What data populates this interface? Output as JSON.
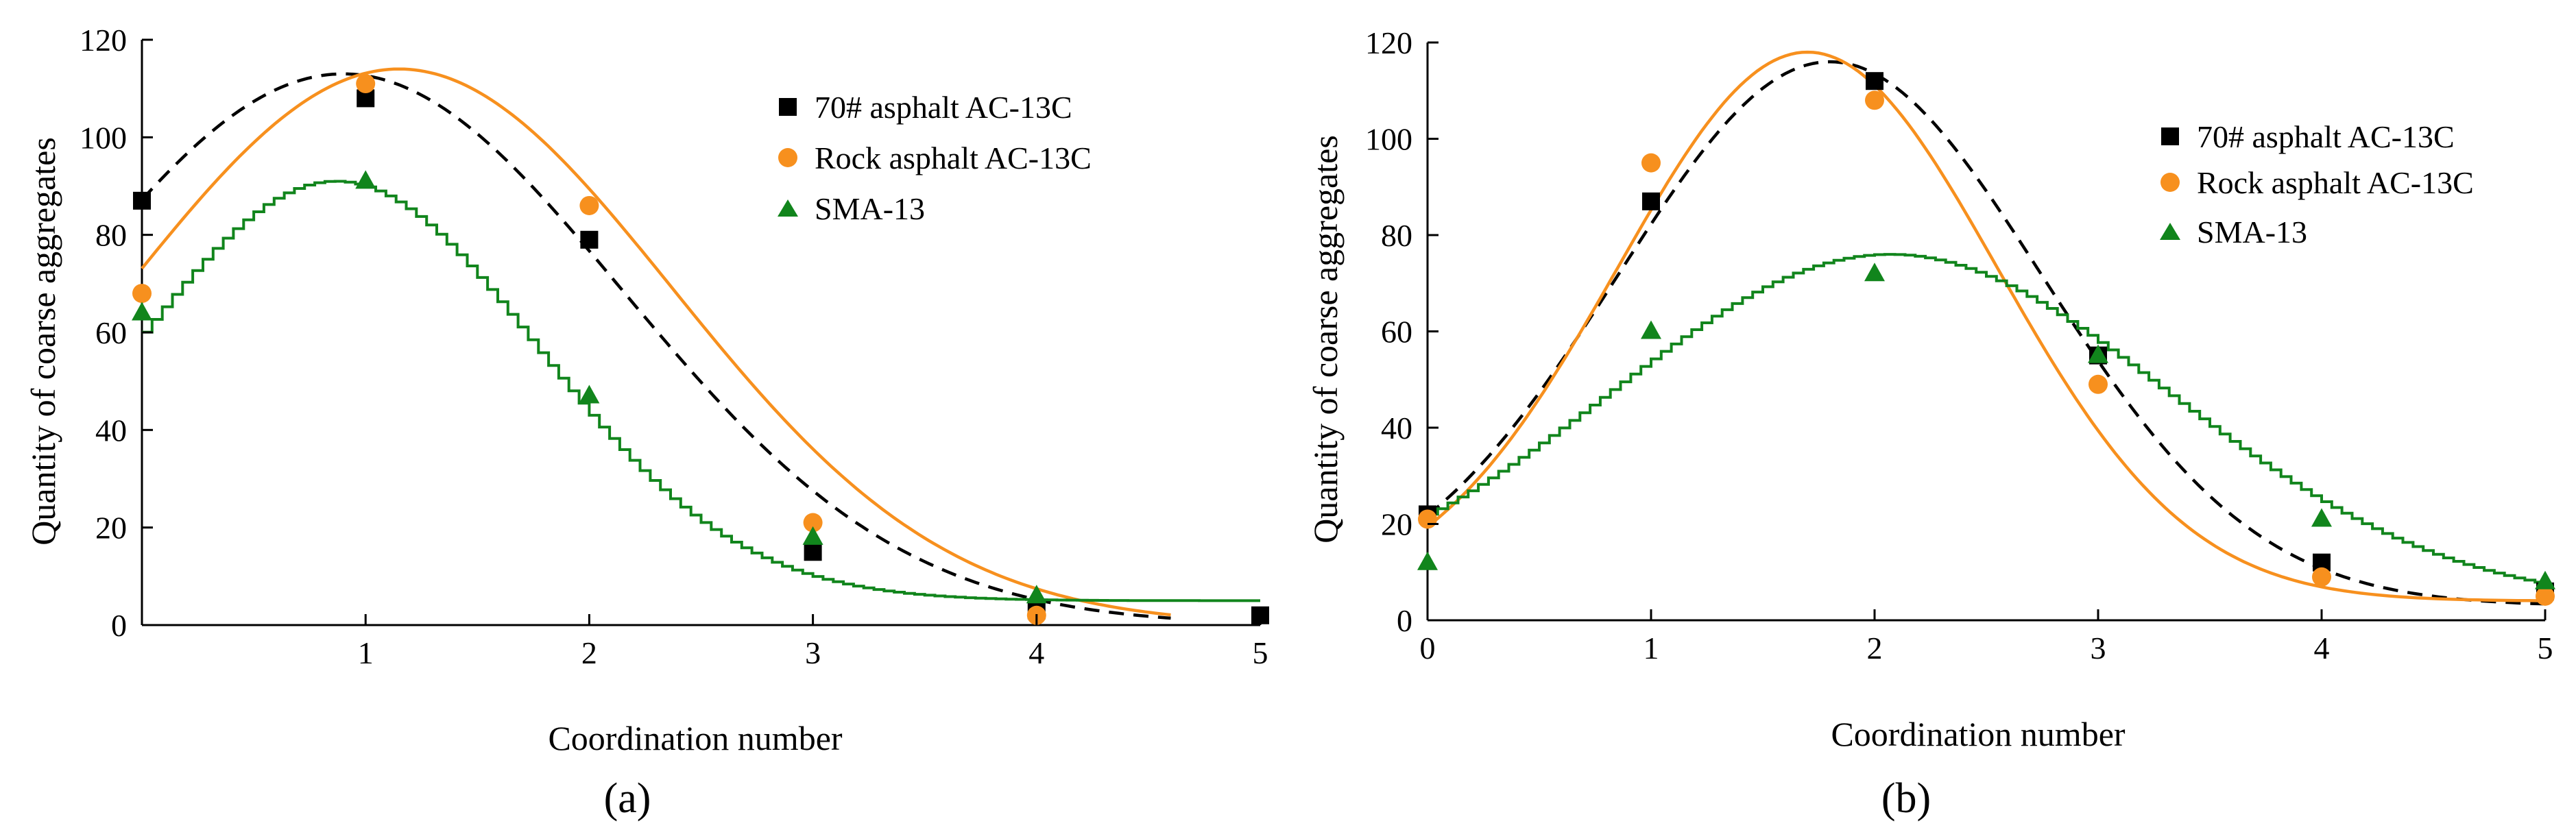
{
  "figure": {
    "charts": [
      {
        "panel_label": "(a)",
        "legend_entries": [
          "70# asphalt AC-13C",
          "Rock asphalt AC-13C",
          "SMA-13"
        ]
      },
      {
        "panel_label": "(b)",
        "legend_entries": [
          "70# asphalt AC-13C",
          "Rock asphalt AC-13C",
          "SMA-13"
        ]
      }
    ]
  },
  "colors": {
    "black": "#000000",
    "orange": "#f7901e",
    "green": "#11851c"
  },
  "chart_data": [
    {
      "type": "scatter",
      "title": "",
      "panel_label": "(a)",
      "xlabel": "Coordination number",
      "ylabel": "Quantity of coarse aggregates",
      "xlim": [
        0,
        5
      ],
      "ylim": [
        0,
        120
      ],
      "xticks": [
        "1",
        "2",
        "3",
        "4",
        "5"
      ],
      "yticks": [
        "0",
        "20",
        "40",
        "60",
        "80",
        "100",
        "120"
      ],
      "grid": false,
      "legend_position": "top-right",
      "series": [
        {
          "name": "70# asphalt AC-13C",
          "marker": "square",
          "color": "#000000",
          "points": [
            [
              0,
              87
            ],
            [
              1,
              108
            ],
            [
              2,
              79
            ],
            [
              3,
              15
            ],
            [
              4,
              3
            ],
            [
              5,
              2
            ]
          ],
          "fit": {
            "kind": "gaussian",
            "A": 113,
            "mu": 0.9,
            "sigma": 1.25,
            "c": 0,
            "style": "dashed",
            "x_end": 4.6
          }
        },
        {
          "name": "Rock asphalt AC-13C",
          "marker": "circle",
          "color": "#f7901e",
          "points": [
            [
              0,
              68
            ],
            [
              1,
              111
            ],
            [
              2,
              86
            ],
            [
              3,
              21
            ],
            [
              4,
              2
            ]
          ],
          "fit": {
            "kind": "gaussian",
            "A": 114,
            "mu": 1.15,
            "sigma": 1.22,
            "c": 0,
            "style": "solid",
            "x_end": 4.6
          }
        },
        {
          "name": "SMA-13",
          "marker": "triangle",
          "color": "#11851c",
          "points": [
            [
              0,
              64
            ],
            [
              1,
              91
            ],
            [
              2,
              47
            ],
            [
              3,
              18
            ],
            [
              4,
              6
            ]
          ],
          "fit": {
            "kind": "gaussian",
            "A": 86,
            "mu": 0.85,
            "sigma": 0.9,
            "c": 5,
            "style": "stepped",
            "x_end": 5
          }
        }
      ]
    },
    {
      "type": "scatter",
      "title": "",
      "panel_label": "(b)",
      "xlabel": "Coordination number",
      "ylabel": "Quantity of coarse aggregates",
      "xlim": [
        0,
        5
      ],
      "ylim": [
        0,
        120
      ],
      "xticks": [
        "0",
        "1",
        "2",
        "3",
        "4",
        "5"
      ],
      "yticks": [
        "0",
        "20",
        "40",
        "60",
        "80",
        "100",
        "120"
      ],
      "grid": false,
      "legend_position": "top-right",
      "series": [
        {
          "name": "70# asphalt AC-13C",
          "marker": "square",
          "color": "#000000",
          "points": [
            [
              0,
              22
            ],
            [
              1,
              87
            ],
            [
              2,
              112
            ],
            [
              3,
              55
            ],
            [
              4,
              12
            ],
            [
              5,
              6
            ]
          ],
          "fit": {
            "kind": "gaussian",
            "A": 113,
            "mu": 1.8,
            "sigma": 0.95,
            "c": 3,
            "style": "dashed",
            "x_end": 5
          }
        },
        {
          "name": "Rock asphalt AC-13C",
          "marker": "circle",
          "color": "#f7901e",
          "points": [
            [
              0,
              21
            ],
            [
              1,
              95
            ],
            [
              2,
              108
            ],
            [
              3,
              49
            ],
            [
              4,
              9
            ],
            [
              5,
              5
            ]
          ],
          "fit": {
            "kind": "gaussian",
            "A": 114,
            "mu": 1.7,
            "sigma": 0.85,
            "c": 4,
            "style": "solid",
            "x_end": 5
          }
        },
        {
          "name": "SMA-13",
          "marker": "triangle",
          "color": "#11851c",
          "points": [
            [
              0,
              12
            ],
            [
              1,
              60
            ],
            [
              2,
              72
            ],
            [
              3,
              55
            ],
            [
              4,
              21
            ],
            [
              5,
              8
            ]
          ],
          "fit": {
            "kind": "gaussian",
            "A": 73,
            "mu": 2.05,
            "sigma": 1.25,
            "c": 3,
            "style": "stepped",
            "x_end": 5
          }
        }
      ]
    }
  ]
}
